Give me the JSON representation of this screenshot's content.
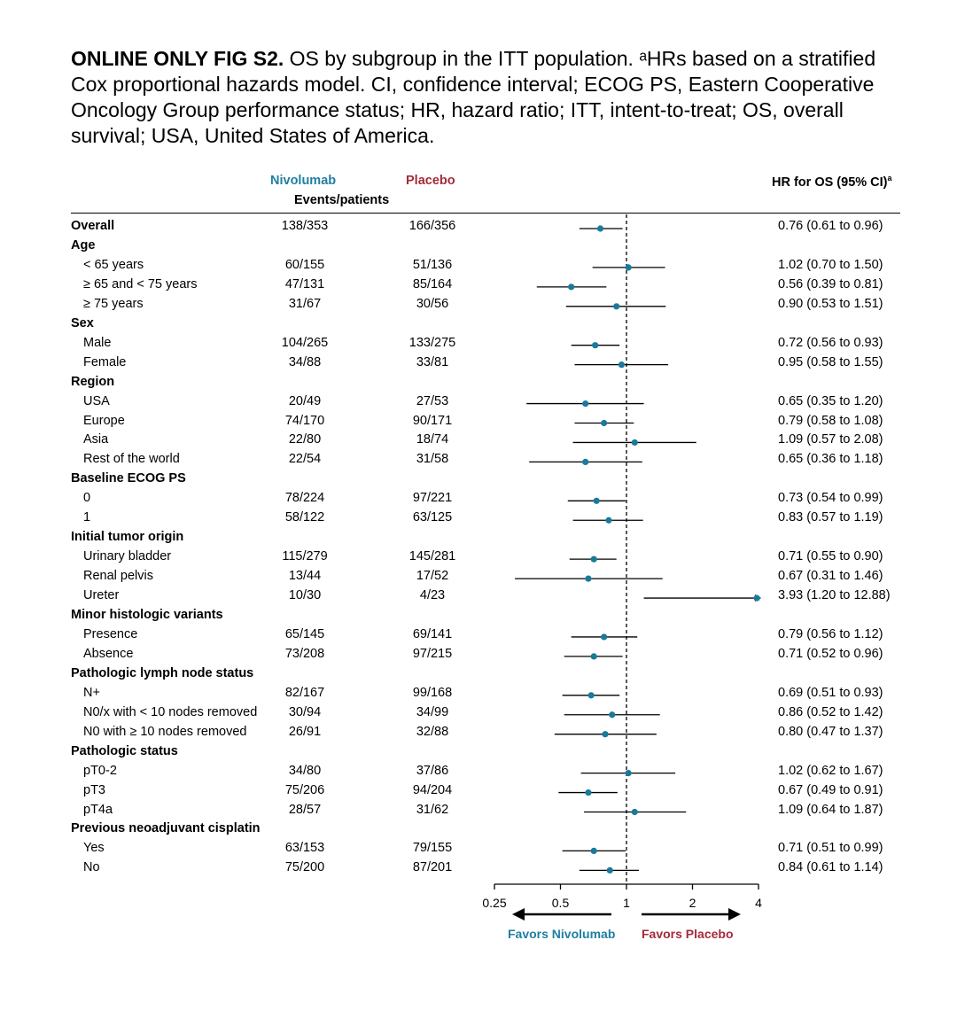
{
  "caption": {
    "bold": "ONLINE ONLY FIG S2.",
    "text": " OS by subgroup in the ITT population. ᵃHRs based on a stratified Cox proportional hazards model. CI, confidence interval; ECOG PS, Eastern Cooperative Oncology Group performance status; HR, hazard ratio; ITT, intent-to-treat; OS, overall survival; USA, United States of America."
  },
  "headers": {
    "nivolumab": "Nivolumab",
    "placebo": "Placebo",
    "events": "Events/patients",
    "hr": "HR for OS (95% CI)",
    "hr_sup": "a"
  },
  "favors": {
    "nivolumab": "Favors Nivolumab",
    "placebo": "Favors Placebo"
  },
  "colors": {
    "nivolumab": "#1f7ea1",
    "placebo": "#a52a3a",
    "marker": "#1a7a9b"
  },
  "chart_data": {
    "type": "forest",
    "x_scale": "log2",
    "xlim": [
      0.25,
      4
    ],
    "x_ticks": [
      0.25,
      0.5,
      1,
      2,
      4
    ],
    "x_tick_labels": [
      "0.25",
      "0.5",
      "1",
      "2",
      "4"
    ],
    "reference_line": 1,
    "rows": [
      {
        "label": "Overall",
        "kind": "main",
        "nivo": "138/353",
        "plac": "166/356",
        "hr_text": "0.76 (0.61 to 0.96)",
        "hr": 0.76,
        "lo": 0.61,
        "hi": 0.96
      },
      {
        "label": "Age",
        "kind": "header"
      },
      {
        "label": "< 65 years",
        "kind": "sub",
        "nivo": "60/155",
        "plac": "51/136",
        "hr_text": "1.02 (0.70 to 1.50)",
        "hr": 1.02,
        "lo": 0.7,
        "hi": 1.5
      },
      {
        "label": "≥ 65 and < 75 years",
        "kind": "sub",
        "nivo": "47/131",
        "plac": "85/164",
        "hr_text": "0.56 (0.39 to 0.81)",
        "hr": 0.56,
        "lo": 0.39,
        "hi": 0.81
      },
      {
        "label": "≥ 75 years",
        "kind": "sub",
        "nivo": "31/67",
        "plac": "30/56",
        "hr_text": "0.90 (0.53 to 1.51)",
        "hr": 0.9,
        "lo": 0.53,
        "hi": 1.51
      },
      {
        "label": "Sex",
        "kind": "header"
      },
      {
        "label": "Male",
        "kind": "sub",
        "nivo": "104/265",
        "plac": "133/275",
        "hr_text": "0.72 (0.56 to 0.93)",
        "hr": 0.72,
        "lo": 0.56,
        "hi": 0.93
      },
      {
        "label": "Female",
        "kind": "sub",
        "nivo": "34/88",
        "plac": "33/81",
        "hr_text": "0.95 (0.58 to 1.55)",
        "hr": 0.95,
        "lo": 0.58,
        "hi": 1.55
      },
      {
        "label": "Region",
        "kind": "header"
      },
      {
        "label": "USA",
        "kind": "sub",
        "nivo": "20/49",
        "plac": "27/53",
        "hr_text": "0.65 (0.35 to 1.20)",
        "hr": 0.65,
        "lo": 0.35,
        "hi": 1.2
      },
      {
        "label": "Europe",
        "kind": "sub",
        "nivo": "74/170",
        "plac": "90/171",
        "hr_text": "0.79 (0.58 to 1.08)",
        "hr": 0.79,
        "lo": 0.58,
        "hi": 1.08
      },
      {
        "label": "Asia",
        "kind": "sub",
        "nivo": "22/80",
        "plac": "18/74",
        "hr_text": "1.09 (0.57 to 2.08)",
        "hr": 1.09,
        "lo": 0.57,
        "hi": 2.08
      },
      {
        "label": "Rest of the world",
        "kind": "sub",
        "nivo": "22/54",
        "plac": "31/58",
        "hr_text": "0.65 (0.36 to 1.18)",
        "hr": 0.65,
        "lo": 0.36,
        "hi": 1.18
      },
      {
        "label": "Baseline ECOG PS",
        "kind": "header"
      },
      {
        "label": "0",
        "kind": "sub",
        "nivo": "78/224",
        "plac": "97/221",
        "hr_text": "0.73 (0.54 to 0.99)",
        "hr": 0.73,
        "lo": 0.54,
        "hi": 0.99
      },
      {
        "label": "1",
        "kind": "sub",
        "nivo": "58/122",
        "plac": "63/125",
        "hr_text": "0.83 (0.57 to 1.19)",
        "hr": 0.83,
        "lo": 0.57,
        "hi": 1.19
      },
      {
        "label": "Initial tumor origin",
        "kind": "header"
      },
      {
        "label": "Urinary bladder",
        "kind": "sub",
        "nivo": "115/279",
        "plac": "145/281",
        "hr_text": "0.71 (0.55 to 0.90)",
        "hr": 0.71,
        "lo": 0.55,
        "hi": 0.9
      },
      {
        "label": "Renal pelvis",
        "kind": "sub",
        "nivo": "13/44",
        "plac": "17/52",
        "hr_text": "0.67 (0.31 to 1.46)",
        "hr": 0.67,
        "lo": 0.31,
        "hi": 1.46
      },
      {
        "label": "Ureter",
        "kind": "sub",
        "nivo": "10/30",
        "plac": "4/23",
        "hr_text": "3.93 (1.20 to 12.88)",
        "hr": 3.93,
        "lo": 1.2,
        "hi": 12.88
      },
      {
        "label": "Minor histologic variants",
        "kind": "header"
      },
      {
        "label": "Presence",
        "kind": "sub",
        "nivo": "65/145",
        "plac": "69/141",
        "hr_text": "0.79 (0.56 to 1.12)",
        "hr": 0.79,
        "lo": 0.56,
        "hi": 1.12
      },
      {
        "label": "Absence",
        "kind": "sub",
        "nivo": "73/208",
        "plac": "97/215",
        "hr_text": "0.71 (0.52 to 0.96)",
        "hr": 0.71,
        "lo": 0.52,
        "hi": 0.96
      },
      {
        "label": "Pathologic lymph node status",
        "kind": "header"
      },
      {
        "label": "N+",
        "kind": "sub",
        "nivo": "82/167",
        "plac": "99/168",
        "hr_text": "0.69 (0.51 to 0.93)",
        "hr": 0.69,
        "lo": 0.51,
        "hi": 0.93
      },
      {
        "label": "N0/x with < 10 nodes removed",
        "kind": "sub",
        "nivo": "30/94",
        "plac": "34/99",
        "hr_text": "0.86 (0.52 to 1.42)",
        "hr": 0.86,
        "lo": 0.52,
        "hi": 1.42
      },
      {
        "label": "N0 with ≥ 10 nodes removed",
        "kind": "sub",
        "nivo": "26/91",
        "plac": "32/88",
        "hr_text": "0.80 (0.47 to 1.37)",
        "hr": 0.8,
        "lo": 0.47,
        "hi": 1.37
      },
      {
        "label": "Pathologic status",
        "kind": "header"
      },
      {
        "label": "pT0-2",
        "kind": "sub",
        "nivo": "34/80",
        "plac": "37/86",
        "hr_text": "1.02 (0.62 to 1.67)",
        "hr": 1.02,
        "lo": 0.62,
        "hi": 1.67
      },
      {
        "label": "pT3",
        "kind": "sub",
        "nivo": "75/206",
        "plac": "94/204",
        "hr_text": "0.67 (0.49 to 0.91)",
        "hr": 0.67,
        "lo": 0.49,
        "hi": 0.91
      },
      {
        "label": "pT4a",
        "kind": "sub",
        "nivo": "28/57",
        "plac": "31/62",
        "hr_text": "1.09 (0.64 to 1.87)",
        "hr": 1.09,
        "lo": 0.64,
        "hi": 1.87
      },
      {
        "label": "Previous neoadjuvant cisplatin",
        "kind": "header"
      },
      {
        "label": "Yes",
        "kind": "sub",
        "nivo": "63/153",
        "plac": "79/155",
        "hr_text": "0.71 (0.51 to 0.99)",
        "hr": 0.71,
        "lo": 0.51,
        "hi": 0.99
      },
      {
        "label": "No",
        "kind": "sub",
        "nivo": "75/200",
        "plac": "87/201",
        "hr_text": "0.84 (0.61 to 1.14)",
        "hr": 0.84,
        "lo": 0.61,
        "hi": 1.14
      }
    ]
  }
}
